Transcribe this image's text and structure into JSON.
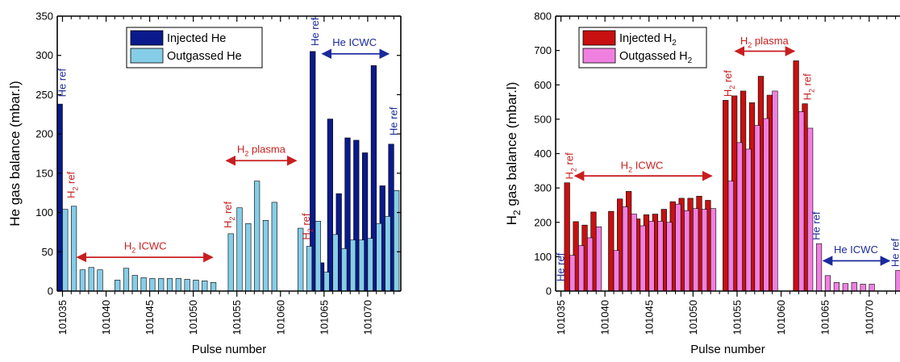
{
  "chart_data": [
    {
      "type": "bar",
      "xlabel": "Pulse number",
      "ylabel": "He gas balance (mbar.l)",
      "xlim": [
        101034.4,
        101073.8
      ],
      "ylim": [
        0,
        350
      ],
      "yticks": [
        0,
        50,
        100,
        150,
        200,
        250,
        300,
        350
      ],
      "xticks": [
        101035,
        101040,
        101045,
        101050,
        101055,
        101060,
        101065,
        101070
      ],
      "xtick_labels": [
        "101035",
        "101040",
        "101045",
        "101050",
        "101055",
        "101060",
        "101065",
        "101070"
      ],
      "legend_position": "top-center",
      "series": [
        {
          "name": "Injected He",
          "color": "#0a1a8c",
          "points": [
            [
              101035,
              238
            ],
            [
              101064,
              305
            ],
            [
              101065,
              36
            ],
            [
              101066,
              219
            ],
            [
              101067,
              124
            ],
            [
              101068,
              195
            ],
            [
              101069,
              192
            ],
            [
              101070,
              176
            ],
            [
              101071,
              287
            ],
            [
              101072,
              134
            ],
            [
              101073,
              187
            ]
          ]
        },
        {
          "name": "Outgassed He",
          "color": "#86cde8",
          "points": [
            [
              101035,
              104
            ],
            [
              101036,
              108
            ],
            [
              101037,
              27
            ],
            [
              101038,
              30
            ],
            [
              101039,
              27
            ],
            [
              101041,
              14
            ],
            [
              101042,
              29
            ],
            [
              101043,
              20
            ],
            [
              101044,
              17
            ],
            [
              101045,
              16
            ],
            [
              101046,
              16
            ],
            [
              101047,
              16
            ],
            [
              101048,
              16
            ],
            [
              101049,
              15
            ],
            [
              101050,
              14
            ],
            [
              101051,
              13
            ],
            [
              101052,
              11
            ],
            [
              101054,
              73
            ],
            [
              101055,
              106
            ],
            [
              101056,
              86
            ],
            [
              101057,
              140
            ],
            [
              101058,
              90
            ],
            [
              101059,
              113
            ],
            [
              101062,
              80
            ],
            [
              101063,
              57
            ],
            [
              101064,
              89
            ],
            [
              101065,
              24
            ],
            [
              101066,
              72
            ],
            [
              101067,
              54
            ],
            [
              101068,
              65
            ],
            [
              101069,
              65
            ],
            [
              101070,
              67
            ],
            [
              101071,
              86
            ],
            [
              101072,
              95
            ],
            [
              101073,
              128
            ]
          ]
        }
      ],
      "annotations": [
        {
          "text": "He ref",
          "x": 101035,
          "y": 247,
          "color": "#1a2a9c",
          "rotate": true
        },
        {
          "text": "H₂ ref",
          "x": 101036,
          "y": 118,
          "color": "#c81e1e",
          "rotate": true
        },
        {
          "text": "H₂ ref",
          "x": 101054,
          "y": 80,
          "color": "#c81e1e",
          "rotate": true
        },
        {
          "text": "H₂ ref",
          "x": 101063,
          "y": 65,
          "color": "#c81e1e",
          "rotate": true
        },
        {
          "text": "He ref",
          "x": 101064,
          "y": 312,
          "color": "#1a2a9c",
          "rotate": true
        },
        {
          "text": "He ref",
          "x": 101073,
          "y": 198,
          "color": "#1a2a9c",
          "rotate": true
        },
        {
          "text": "H₂ ICWC",
          "x": 101044.5,
          "y": 53,
          "color": "#c81e1e",
          "rotate": false
        },
        {
          "text": "H₂ plasma",
          "x": 101057.8,
          "y": 176,
          "color": "#c81e1e",
          "rotate": false
        },
        {
          "text": "He ICWC",
          "x": 101068.5,
          "y": 312,
          "color": "#1a2a9c",
          "rotate": false
        }
      ],
      "arrows": [
        {
          "x1": 101036.7,
          "x2": 101052.2,
          "y": 43,
          "color": "#c81e1e"
        },
        {
          "x1": 101053.8,
          "x2": 101061.8,
          "y": 166,
          "color": "#c81e1e"
        },
        {
          "x1": 101064.8,
          "x2": 101072.4,
          "y": 302,
          "color": "#1a2a9c"
        }
      ]
    },
    {
      "type": "bar",
      "xlabel": "Pulse number",
      "ylabel": "H₂ gas balance (mbar.l)",
      "xlim": [
        101034.4,
        101073.5
      ],
      "ylim": [
        0,
        800
      ],
      "yticks": [
        0,
        100,
        200,
        300,
        400,
        500,
        600,
        700,
        800
      ],
      "xticks": [
        101035,
        101040,
        101045,
        101050,
        101055,
        101060,
        101065,
        101070
      ],
      "xtick_labels": [
        "101035",
        "101040",
        "101045",
        "101050",
        "101055",
        "101060",
        "101065",
        "101070"
      ],
      "legend_position": "top-left",
      "series": [
        {
          "name": "Injected H₂",
          "color": "#c81010",
          "points": [
            [
              101036,
              315
            ],
            [
              101037,
              202
            ],
            [
              101038,
              192
            ],
            [
              101039,
              230
            ],
            [
              101041,
              232
            ],
            [
              101042,
              268
            ],
            [
              101043,
              290
            ],
            [
              101044,
              210
            ],
            [
              101045,
              222
            ],
            [
              101046,
              224
            ],
            [
              101047,
              238
            ],
            [
              101048,
              260
            ],
            [
              101049,
              270
            ],
            [
              101050,
              270
            ],
            [
              101051,
              276
            ],
            [
              101052,
              264
            ],
            [
              101054,
              555
            ],
            [
              101055,
              568
            ],
            [
              101056,
              582
            ],
            [
              101057,
              548
            ],
            [
              101058,
              625
            ],
            [
              101059,
              570
            ],
            [
              101062,
              670
            ],
            [
              101063,
              545
            ]
          ]
        },
        {
          "name": "Outgassed H₂",
          "color": "#f080e0",
          "points": [
            [
              101036,
              104
            ],
            [
              101037,
              132
            ],
            [
              101038,
              155
            ],
            [
              101039,
              187
            ],
            [
              101041,
              118
            ],
            [
              101042,
              245
            ],
            [
              101043,
              224
            ],
            [
              101044,
              190
            ],
            [
              101045,
              203
            ],
            [
              101046,
              203
            ],
            [
              101047,
              200
            ],
            [
              101048,
              253
            ],
            [
              101049,
              234
            ],
            [
              101050,
              240
            ],
            [
              101051,
              238
            ],
            [
              101052,
              240
            ],
            [
              101054,
              320
            ],
            [
              101055,
              432
            ],
            [
              101056,
              413
            ],
            [
              101057,
              482
            ],
            [
              101058,
              502
            ],
            [
              101059,
              582
            ],
            [
              101062,
              522
            ],
            [
              101063,
              474
            ],
            [
              101064,
              138
            ],
            [
              101065,
              45
            ],
            [
              101066,
              25
            ],
            [
              101067,
              22
            ],
            [
              101068,
              25
            ],
            [
              101069,
              20
            ],
            [
              101070,
              20
            ],
            [
              101073,
              60
            ]
          ]
        }
      ],
      "annotations": [
        {
          "text": "He ref",
          "x": 101035,
          "y": 28,
          "color": "#1a2a9c",
          "rotate": true
        },
        {
          "text": "H₂ ref",
          "x": 101036,
          "y": 325,
          "color": "#c81e1e",
          "rotate": true
        },
        {
          "text": "H₂ ref",
          "x": 101054,
          "y": 565,
          "color": "#c81e1e",
          "rotate": true
        },
        {
          "text": "H₂ ref",
          "x": 101063,
          "y": 555,
          "color": "#c81e1e",
          "rotate": true
        },
        {
          "text": "He ref",
          "x": 101064,
          "y": 148,
          "color": "#1a2a9c",
          "rotate": true
        },
        {
          "text": "He ref",
          "x": 101073,
          "y": 70,
          "color": "#1a2a9c",
          "rotate": true
        },
        {
          "text": "H₂ ICWC",
          "x": 101044.2,
          "y": 355,
          "color": "#c81e1e",
          "rotate": false
        },
        {
          "text": "H₂ plasma",
          "x": 101058.1,
          "y": 718,
          "color": "#c81e1e",
          "rotate": false
        },
        {
          "text": "He ICWC",
          "x": 101068.5,
          "y": 110,
          "color": "#1a2a9c",
          "rotate": false
        }
      ],
      "arrows": [
        {
          "x1": 101036.6,
          "x2": 101052.1,
          "y": 335,
          "color": "#c81e1e"
        },
        {
          "x1": 101054.8,
          "x2": 101061.5,
          "y": 698,
          "color": "#c81e1e"
        },
        {
          "x1": 101064.8,
          "x2": 101072.3,
          "y": 88,
          "color": "#1a2a9c"
        }
      ]
    }
  ]
}
